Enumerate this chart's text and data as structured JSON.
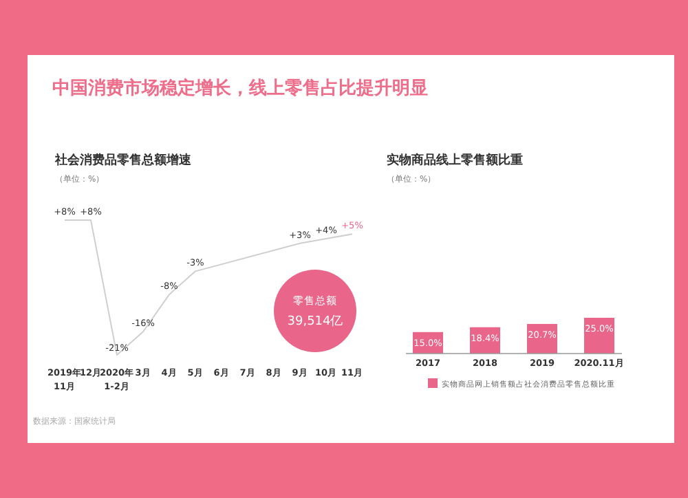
{
  "chart_data": [
    {
      "type": "other",
      "title": "中国消费市场稳定增长，线上零售占比提升明显",
      "annotations": [
        "数据来源：国家统计局"
      ]
    },
    {
      "type": "line",
      "title": "社会消费品零售总额增速",
      "subtitle": "（单位：%）",
      "categories": [
        "2019年 11月",
        "12月",
        "2020年 1-2月",
        "3月",
        "4月",
        "5月",
        "6月",
        "7月",
        "8月",
        "9月",
        "10月",
        "11月"
      ],
      "series": [
        {
          "color": "#cfcfcf",
          "values": [
            8,
            8,
            -21,
            -16,
            -8,
            -3,
            null,
            null,
            null,
            3,
            4,
            5
          ],
          "value_labels": [
            "+8%",
            "+8%",
            "-21%",
            "-16%",
            "-8%",
            "-3%",
            null,
            null,
            null,
            "+3%",
            "+4%",
            "+5%"
          ]
        }
      ],
      "marker": "none",
      "annotations": [
        "零售总额",
        "39,514亿"
      ]
    },
    {
      "type": "bar",
      "title": "实物商品线上零售额比重",
      "subtitle": "（单位：%）",
      "categories": [
        "2017",
        "2018",
        "2019",
        "2020.11月"
      ],
      "series": [
        {
          "name": "实物商品网上销售额占社会消费品零售总额比重",
          "color": "#e9658a",
          "values": [
            15.0,
            18.4,
            20.7,
            25.0
          ],
          "value_labels": [
            "15.0%",
            "18.4%",
            "20.7%",
            "25.0%"
          ]
        }
      ],
      "legend": "bottom"
    }
  ]
}
